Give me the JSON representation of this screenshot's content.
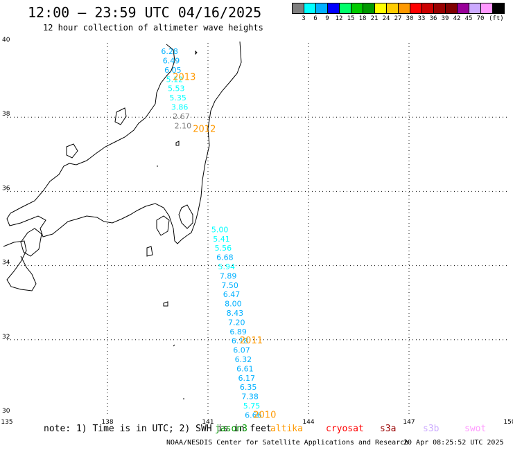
{
  "title": "12:00 – 23:59 UTC 04/16/2025",
  "subtitle": "12 hour collection of altimeter wave heights",
  "legend": {
    "unit": "(ft)",
    "items": [
      {
        "label": "",
        "color": "#7f7f7f"
      },
      {
        "label": "3",
        "color": "#00ffff"
      },
      {
        "label": "6",
        "color": "#00b0ff"
      },
      {
        "label": "9",
        "color": "#0000ff"
      },
      {
        "label": "12",
        "color": "#00ff6a"
      },
      {
        "label": "15",
        "color": "#00cc00"
      },
      {
        "label": "18",
        "color": "#009900"
      },
      {
        "label": "21",
        "color": "#ffff00"
      },
      {
        "label": "24",
        "color": "#ffcc00"
      },
      {
        "label": "27",
        "color": "#ff9900"
      },
      {
        "label": "30",
        "color": "#ff0000"
      },
      {
        "label": "33",
        "color": "#cc0000"
      },
      {
        "label": "36",
        "color": "#990000"
      },
      {
        "label": "39",
        "color": "#800000"
      },
      {
        "label": "42",
        "color": "#990099"
      },
      {
        "label": "45",
        "color": "#ccaaff"
      },
      {
        "label": "70",
        "color": "#ff99ff"
      },
      {
        "label": "",
        "color": "#000000"
      }
    ]
  },
  "axes": {
    "lon_ticks": [
      "135",
      "138",
      "141",
      "144",
      "147",
      "150"
    ],
    "lat_ticks": [
      "40",
      "38",
      "36",
      "34",
      "32",
      "30"
    ]
  },
  "tracks": [
    {
      "time": "2013",
      "points": [
        {
          "lon": 139.6,
          "lat": 39.7,
          "swh": "6.28",
          "color": "#00b0ff"
        },
        {
          "lon": 139.65,
          "lat": 39.45,
          "swh": "6.49",
          "color": "#00b0ff"
        },
        {
          "lon": 139.7,
          "lat": 39.2,
          "swh": "6.05",
          "color": "#00b0ff"
        },
        {
          "lon": 139.75,
          "lat": 38.95,
          "swh": "5.12",
          "color": "#00ffff"
        },
        {
          "lon": 139.8,
          "lat": 38.7,
          "swh": "5.53",
          "color": "#00ffff"
        },
        {
          "lon": 139.85,
          "lat": 38.45,
          "swh": "5.35",
          "color": "#00ffff"
        },
        {
          "lon": 139.9,
          "lat": 38.2,
          "swh": "3.86",
          "color": "#00ffff"
        },
        {
          "lon": 139.95,
          "lat": 37.95,
          "swh": "2.67",
          "color": "#7f7f7f"
        },
        {
          "lon": 140.0,
          "lat": 37.7,
          "swh": "2.10",
          "color": "#7f7f7f"
        }
      ]
    },
    {
      "time": "2012",
      "points": []
    },
    {
      "time": "2011",
      "points": [
        {
          "lon": 141.1,
          "lat": 34.9,
          "swh": "5.00",
          "color": "#00ffff"
        },
        {
          "lon": 141.15,
          "lat": 34.65,
          "swh": "5.41",
          "color": "#00ffff"
        },
        {
          "lon": 141.2,
          "lat": 34.4,
          "swh": "5.56",
          "color": "#00ffff"
        },
        {
          "lon": 141.25,
          "lat": 34.15,
          "swh": "6.68",
          "color": "#00b0ff"
        },
        {
          "lon": 141.3,
          "lat": 33.9,
          "swh": "5.94",
          "color": "#00ffff"
        },
        {
          "lon": 141.35,
          "lat": 33.65,
          "swh": "7.89",
          "color": "#00b0ff"
        },
        {
          "lon": 141.4,
          "lat": 33.4,
          "swh": "7.50",
          "color": "#00b0ff"
        },
        {
          "lon": 141.45,
          "lat": 33.15,
          "swh": "6.47",
          "color": "#00b0ff"
        },
        {
          "lon": 141.5,
          "lat": 32.9,
          "swh": "8.00",
          "color": "#00b0ff"
        },
        {
          "lon": 141.55,
          "lat": 32.65,
          "swh": "8.43",
          "color": "#00b0ff"
        },
        {
          "lon": 141.6,
          "lat": 32.4,
          "swh": "7.20",
          "color": "#00b0ff"
        },
        {
          "lon": 141.65,
          "lat": 32.15,
          "swh": "6.89",
          "color": "#00b0ff"
        },
        {
          "lon": 141.7,
          "lat": 31.9,
          "swh": "6.18",
          "color": "#00b0ff"
        }
      ]
    },
    {
      "time": "2010",
      "points": [
        {
          "lon": 141.75,
          "lat": 31.65,
          "swh": "6.07",
          "color": "#00b0ff"
        },
        {
          "lon": 141.8,
          "lat": 31.4,
          "swh": "6.32",
          "color": "#00b0ff"
        },
        {
          "lon": 141.85,
          "lat": 31.15,
          "swh": "6.61",
          "color": "#00b0ff"
        },
        {
          "lon": 141.9,
          "lat": 30.9,
          "swh": "6.17",
          "color": "#00b0ff"
        },
        {
          "lon": 141.95,
          "lat": 30.65,
          "swh": "6.35",
          "color": "#00b0ff"
        },
        {
          "lon": 142.0,
          "lat": 30.4,
          "swh": "7.38",
          "color": "#00b0ff"
        },
        {
          "lon": 142.05,
          "lat": 30.15,
          "swh": "5.75",
          "color": "#00ffff"
        },
        {
          "lon": 142.1,
          "lat": 29.9,
          "swh": "6.66",
          "color": "#00b0ff"
        }
      ]
    }
  ],
  "note": "note: 1) Time is in UTC; 2) SWH is in feet",
  "satellites": [
    {
      "name": "jason3",
      "color": "#009900"
    },
    {
      "name": "altika",
      "color": "#ff9900"
    },
    {
      "name": "cryosat",
      "color": "#ff0000"
    },
    {
      "name": "s3a",
      "color": "#990000"
    },
    {
      "name": "s3b",
      "color": "#ccaaff"
    },
    {
      "name": "swot",
      "color": "#ff99ff"
    }
  ],
  "credit": "NOAA/NESDIS Center for Satellite Applications and Research",
  "timestamp": "20 Apr 08:25:52 UTC 2025"
}
